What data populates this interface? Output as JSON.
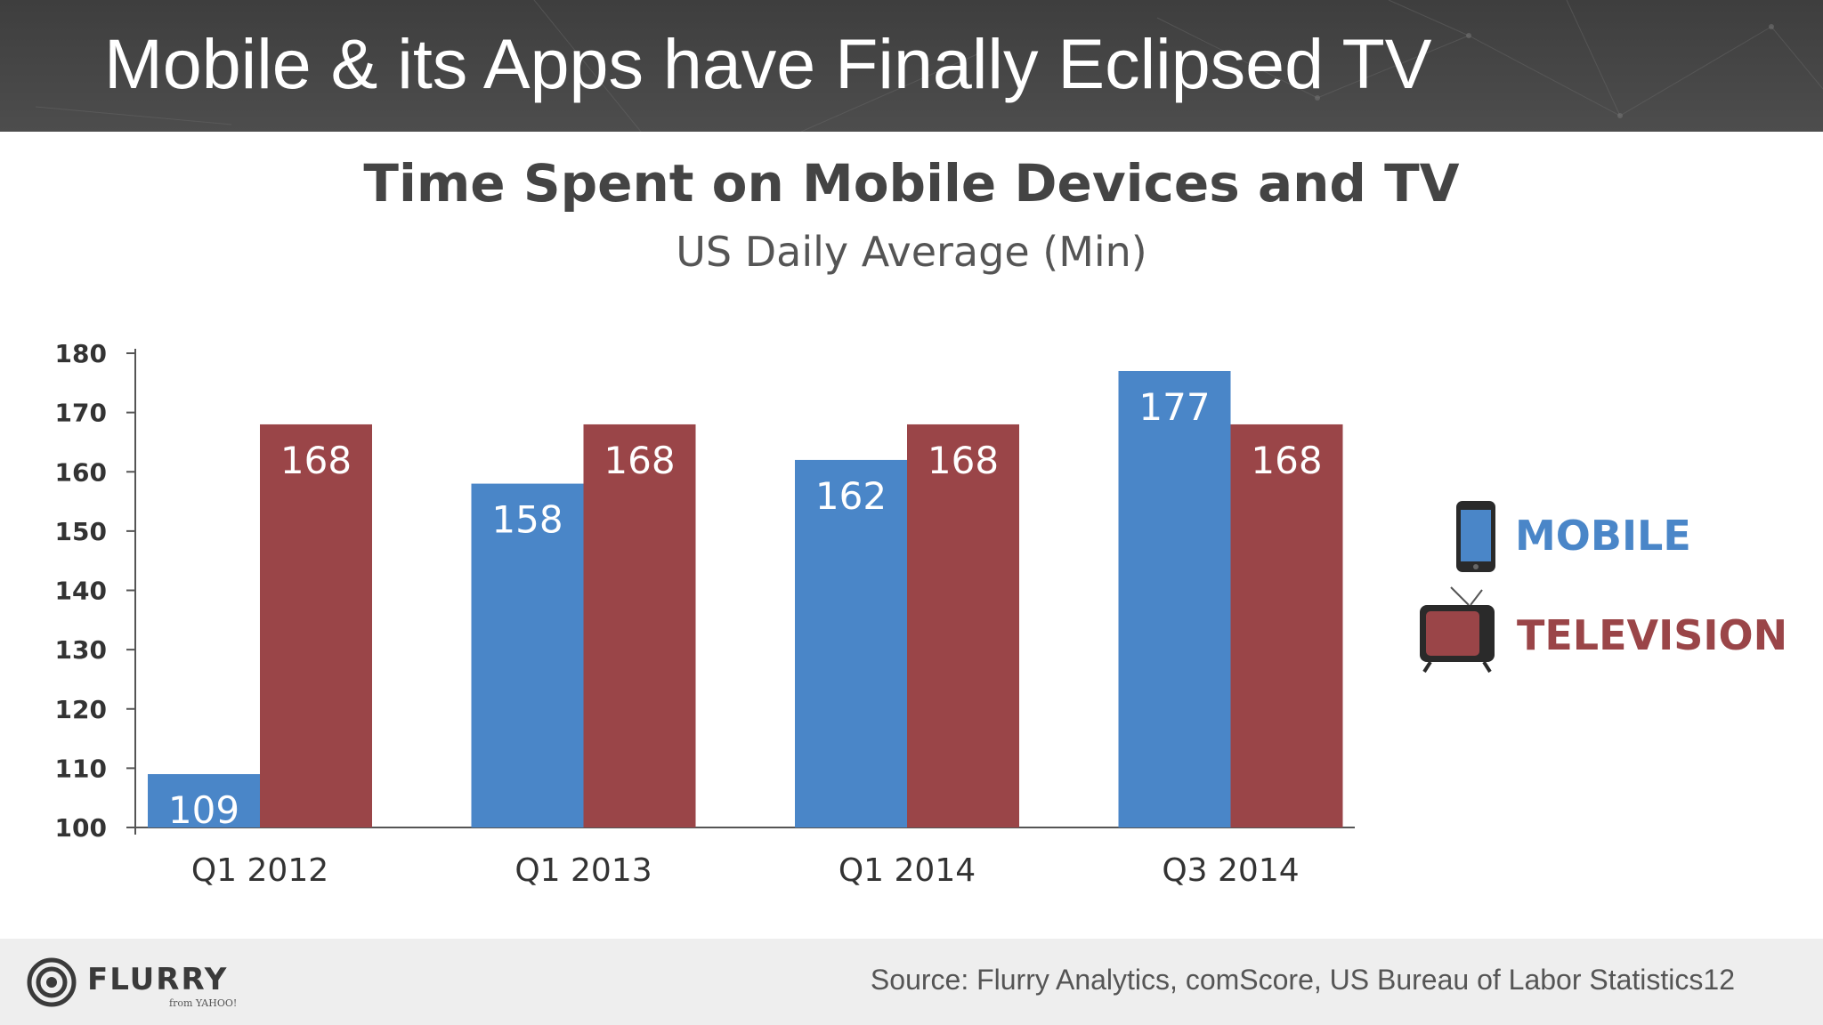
{
  "slide": {
    "title": "Mobile & its Apps have Finally Eclipsed TV"
  },
  "chart_data": {
    "type": "bar",
    "title": "Time Spent on Mobile Devices and TV",
    "subtitle": "US Daily Average (Min)",
    "categories": [
      "Q1 2012",
      "Q1 2013",
      "Q1 2014",
      "Q3 2014"
    ],
    "series": [
      {
        "name": "MOBILE",
        "color": "#4a86c8",
        "values": [
          109,
          158,
          162,
          177
        ]
      },
      {
        "name": "TELEVISION",
        "color": "#9a4548",
        "values": [
          168,
          168,
          168,
          168
        ]
      }
    ],
    "ylim": [
      100,
      180
    ],
    "yticks": [
      100,
      110,
      120,
      130,
      140,
      150,
      160,
      170,
      180
    ],
    "xlabel": "",
    "ylabel": "",
    "legend_position": "right",
    "legend_icons": [
      "phone-icon",
      "tv-icon"
    ],
    "grid": false,
    "data_labels": true
  },
  "footer": {
    "logo_text": "FLURRY",
    "logo_subtext": "from YAHOO!",
    "source": "Source: Flurry Analytics, comScore, US Bureau of Labor Statistics12"
  }
}
